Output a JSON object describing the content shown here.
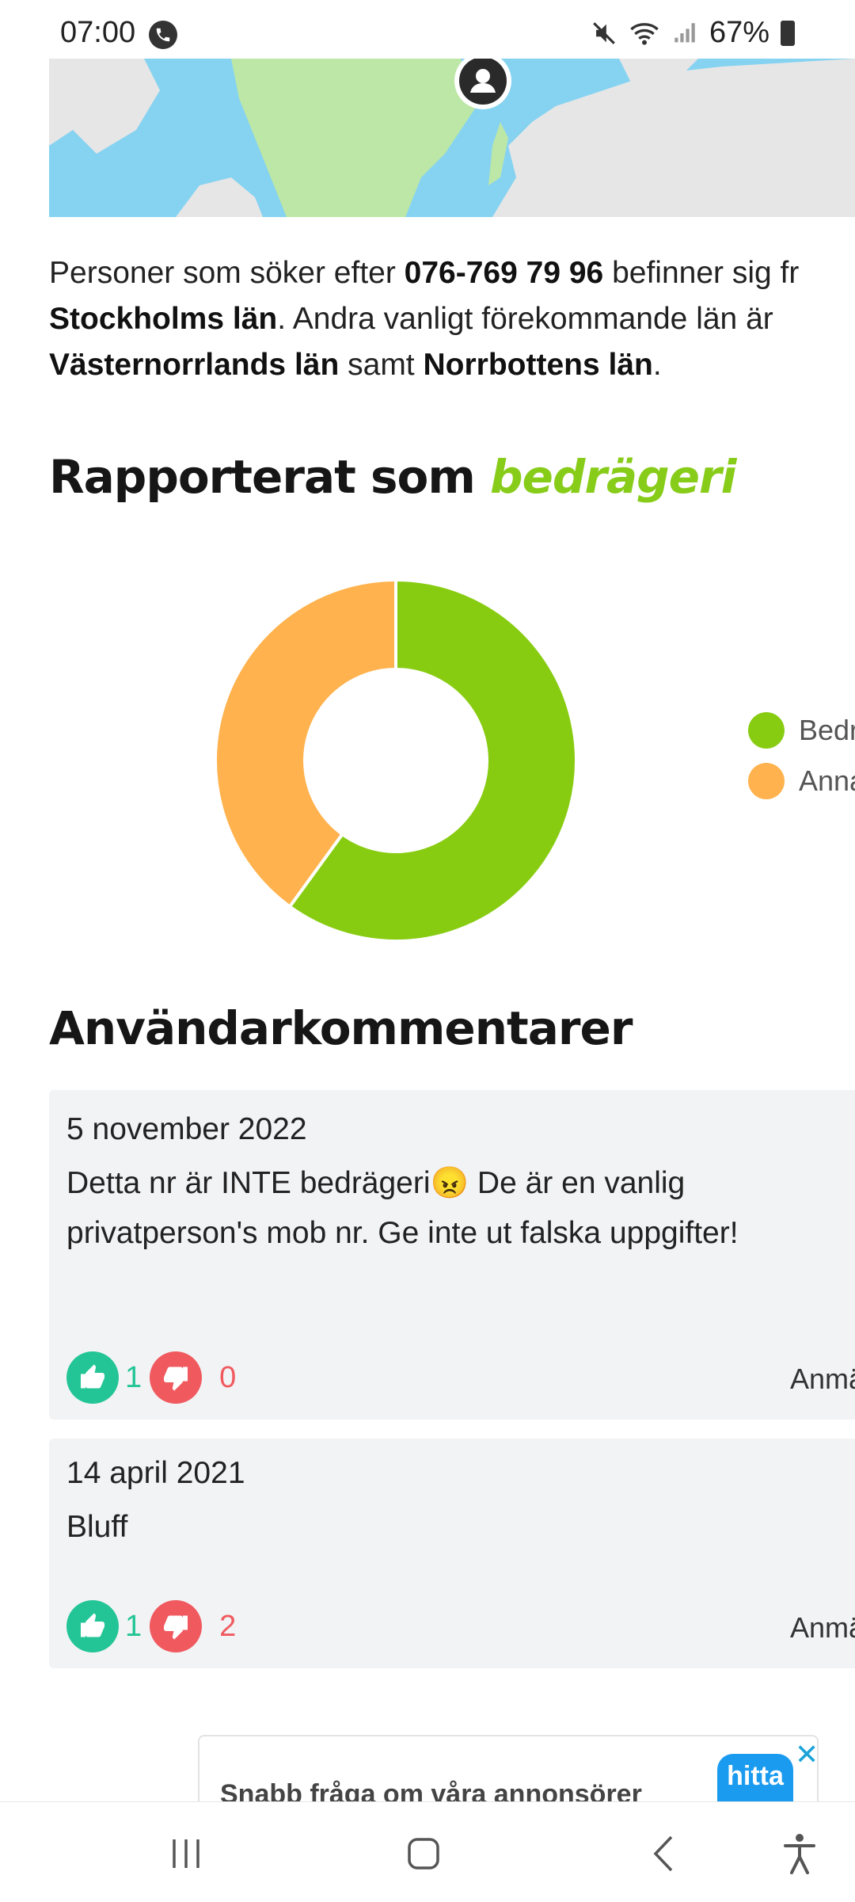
{
  "status": {
    "time": "07:00",
    "battery": "67%"
  },
  "intro": {
    "p1": "Personer som söker efter ",
    "number": "076-769 79 96",
    "p2": " befinner sig fr",
    "region1": "Stockholms län",
    "p3": ". Andra vanligt förekommande län är",
    "region2": "Västernorrlands län",
    "p4": " samt ",
    "region3": "Norrbottens län",
    "p5": "."
  },
  "reported": {
    "title": "Rapporterat som ",
    "accent": "bedrägeri"
  },
  "chart_data": {
    "type": "pie",
    "title": "",
    "labels": [
      "Bedr",
      "Anna"
    ],
    "values": [
      60,
      40
    ],
    "colors": [
      "#88cc12",
      "#ffb24d"
    ],
    "legend_position": "right"
  },
  "comments": {
    "title": "Användarkommentarer",
    "items": [
      {
        "date": "5 november 2022",
        "text": "Detta nr är INTE bedrägeri😠 De är en vanlig privatperson's mob nr. Ge inte ut falska uppgifter!",
        "up": "1",
        "down": "0",
        "report": "Anmä"
      },
      {
        "date": "14 april 2021",
        "text": "Bluff",
        "up": "1",
        "down": "2",
        "report": "Anmä"
      }
    ]
  },
  "ad": {
    "text": "Snabb fråga om våra annonsörer",
    "logo": "hitta se",
    "close": "✕"
  },
  "icons": {
    "map_marker": "person-marker-icon",
    "thumb_up": "thumbs-up-icon",
    "thumb_down": "thumbs-down-icon"
  }
}
